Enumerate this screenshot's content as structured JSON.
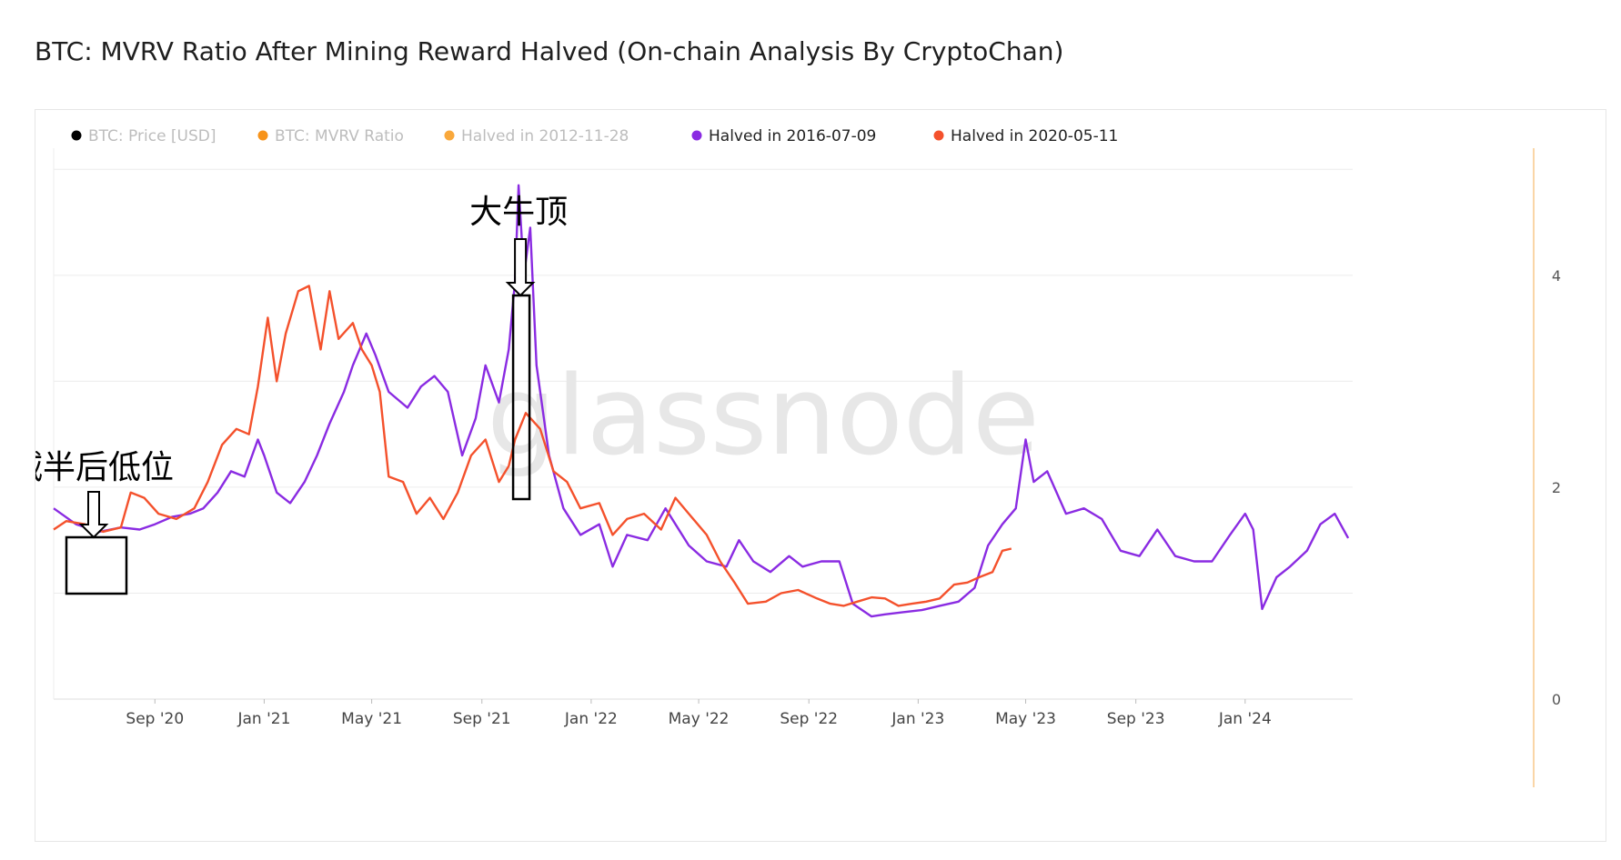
{
  "title": "BTC: MVRV Ratio After Mining Reward Halved (On-chain Analysis By CryptoChan)",
  "watermark": "glassnode",
  "colors": {
    "price": "#000000",
    "mvrv": "#f7931a",
    "halved_2012": "#f9a83b",
    "halved_2016": "#8a2be2",
    "halved_2020": "#f4512c",
    "grid": "#ececec",
    "right_axis": "#f9c98a"
  },
  "legend": [
    {
      "label": "BTC: Price [USD]",
      "color": "#000000",
      "dimmed": true
    },
    {
      "label": "BTC: MVRV Ratio",
      "color": "#f7931a",
      "dimmed": true
    },
    {
      "label": "Halved in 2012-11-28",
      "color": "#f9a83b",
      "dimmed": true
    },
    {
      "label": "Halved in 2016-07-09",
      "color": "#8a2be2",
      "dimmed": false
    },
    {
      "label": "Halved in 2020-05-11",
      "color": "#f4512c",
      "dimmed": false
    }
  ],
  "annotations": [
    {
      "text": "大牛顶",
      "target": "Halved in 2016-07-09 peak, Oct 2021"
    },
    {
      "text": "减半后低位",
      "target": "post-halving low, Jun–Aug 2020"
    }
  ],
  "chart_data": {
    "type": "line",
    "x_axis": {
      "type": "date",
      "range": [
        "2020-05-11",
        "2024-04-30"
      ],
      "ticks": [
        "Sep '20",
        "Jan '21",
        "May '21",
        "Sep '21",
        "Jan '22",
        "May '22",
        "Sep '22",
        "Jan '23",
        "May '23",
        "Sep '23",
        "Jan '24"
      ]
    },
    "y_axis": {
      "side": "right",
      "range": [
        0,
        5.2
      ],
      "ticks": [
        "0",
        "2",
        "4"
      ]
    },
    "grid": true,
    "legend_position": "top-left",
    "series": [
      {
        "name": "Halved in 2016-07-09",
        "points": [
          [
            "2020-05-11",
            1.8
          ],
          [
            "2020-06-05",
            1.65
          ],
          [
            "2020-07-01",
            1.58
          ],
          [
            "2020-07-25",
            1.62
          ],
          [
            "2020-08-15",
            1.6
          ],
          [
            "2020-09-01",
            1.65
          ],
          [
            "2020-09-20",
            1.72
          ],
          [
            "2020-10-10",
            1.75
          ],
          [
            "2020-10-25",
            1.8
          ],
          [
            "2020-11-10",
            1.95
          ],
          [
            "2020-11-25",
            2.15
          ],
          [
            "2020-12-10",
            2.1
          ],
          [
            "2020-12-25",
            2.45
          ],
          [
            "2021-01-01",
            2.3
          ],
          [
            "2021-01-15",
            1.95
          ],
          [
            "2021-01-30",
            1.85
          ],
          [
            "2021-02-15",
            2.05
          ],
          [
            "2021-03-01",
            2.3
          ],
          [
            "2021-03-15",
            2.6
          ],
          [
            "2021-03-31",
            2.9
          ],
          [
            "2021-04-10",
            3.15
          ],
          [
            "2021-04-25",
            3.45
          ],
          [
            "2021-05-05",
            3.25
          ],
          [
            "2021-05-20",
            2.9
          ],
          [
            "2021-06-10",
            2.75
          ],
          [
            "2021-06-25",
            2.95
          ],
          [
            "2021-07-10",
            3.05
          ],
          [
            "2021-07-25",
            2.9
          ],
          [
            "2021-08-10",
            2.3
          ],
          [
            "2021-08-25",
            2.65
          ],
          [
            "2021-09-05",
            3.15
          ],
          [
            "2021-09-20",
            2.8
          ],
          [
            "2021-10-01",
            3.3
          ],
          [
            "2021-10-08",
            3.95
          ],
          [
            "2021-10-12",
            4.85
          ],
          [
            "2021-10-18",
            4.0
          ],
          [
            "2021-10-25",
            4.45
          ],
          [
            "2021-11-01",
            3.15
          ],
          [
            "2021-11-15",
            2.3
          ],
          [
            "2021-12-01",
            1.8
          ],
          [
            "2021-12-20",
            1.55
          ],
          [
            "2022-01-10",
            1.65
          ],
          [
            "2022-01-25",
            1.25
          ],
          [
            "2022-02-10",
            1.55
          ],
          [
            "2022-03-05",
            1.5
          ],
          [
            "2022-03-25",
            1.8
          ],
          [
            "2022-04-20",
            1.45
          ],
          [
            "2022-05-10",
            1.3
          ],
          [
            "2022-06-01",
            1.25
          ],
          [
            "2022-06-15",
            1.5
          ],
          [
            "2022-07-01",
            1.3
          ],
          [
            "2022-07-20",
            1.2
          ],
          [
            "2022-08-10",
            1.35
          ],
          [
            "2022-08-25",
            1.25
          ],
          [
            "2022-09-15",
            1.3
          ],
          [
            "2022-10-05",
            1.3
          ],
          [
            "2022-10-20",
            0.9
          ],
          [
            "2022-11-10",
            0.78
          ],
          [
            "2022-11-25",
            0.8
          ],
          [
            "2022-12-15",
            0.82
          ],
          [
            "2023-01-05",
            0.84
          ],
          [
            "2023-01-25",
            0.88
          ],
          [
            "2023-02-15",
            0.92
          ],
          [
            "2023-03-05",
            1.05
          ],
          [
            "2023-03-20",
            1.45
          ],
          [
            "2023-04-05",
            1.65
          ],
          [
            "2023-04-20",
            1.8
          ],
          [
            "2023-05-01",
            2.45
          ],
          [
            "2023-05-10",
            2.05
          ],
          [
            "2023-05-25",
            2.15
          ],
          [
            "2023-06-15",
            1.75
          ],
          [
            "2023-07-05",
            1.8
          ],
          [
            "2023-07-25",
            1.7
          ],
          [
            "2023-08-15",
            1.4
          ],
          [
            "2023-09-05",
            1.35
          ],
          [
            "2023-09-25",
            1.6
          ],
          [
            "2023-10-15",
            1.35
          ],
          [
            "2023-11-05",
            1.3
          ],
          [
            "2023-11-25",
            1.3
          ],
          [
            "2023-12-15",
            1.55
          ],
          [
            "2024-01-01",
            1.75
          ],
          [
            "2024-01-10",
            1.6
          ],
          [
            "2024-01-20",
            0.85
          ],
          [
            "2024-02-05",
            1.15
          ],
          [
            "2024-02-20",
            1.25
          ],
          [
            "2024-03-10",
            1.4
          ],
          [
            "2024-03-25",
            1.65
          ],
          [
            "2024-04-10",
            1.75
          ],
          [
            "2024-04-25",
            1.52
          ]
        ]
      },
      {
        "name": "Halved in 2020-05-11",
        "points": [
          [
            "2020-05-11",
            1.6
          ],
          [
            "2020-05-25",
            1.68
          ],
          [
            "2020-06-15",
            1.65
          ],
          [
            "2020-07-05",
            1.58
          ],
          [
            "2020-07-25",
            1.62
          ],
          [
            "2020-08-05",
            1.95
          ],
          [
            "2020-08-20",
            1.9
          ],
          [
            "2020-09-05",
            1.75
          ],
          [
            "2020-09-25",
            1.7
          ],
          [
            "2020-10-15",
            1.8
          ],
          [
            "2020-10-30",
            2.05
          ],
          [
            "2020-11-15",
            2.4
          ],
          [
            "2020-12-01",
            2.55
          ],
          [
            "2020-12-15",
            2.5
          ],
          [
            "2020-12-25",
            2.95
          ],
          [
            "2021-01-05",
            3.6
          ],
          [
            "2021-01-15",
            3.0
          ],
          [
            "2021-01-25",
            3.45
          ],
          [
            "2021-02-08",
            3.85
          ],
          [
            "2021-02-20",
            3.9
          ],
          [
            "2021-03-05",
            3.3
          ],
          [
            "2021-03-15",
            3.85
          ],
          [
            "2021-03-25",
            3.4
          ],
          [
            "2021-04-10",
            3.55
          ],
          [
            "2021-04-20",
            3.3
          ],
          [
            "2021-05-01",
            3.15
          ],
          [
            "2021-05-10",
            2.9
          ],
          [
            "2021-05-20",
            2.1
          ],
          [
            "2021-06-05",
            2.05
          ],
          [
            "2021-06-20",
            1.75
          ],
          [
            "2021-07-05",
            1.9
          ],
          [
            "2021-07-20",
            1.7
          ],
          [
            "2021-08-05",
            1.95
          ],
          [
            "2021-08-20",
            2.3
          ],
          [
            "2021-09-05",
            2.45
          ],
          [
            "2021-09-20",
            2.05
          ],
          [
            "2021-10-01",
            2.2
          ],
          [
            "2021-10-08",
            2.45
          ],
          [
            "2021-10-20",
            2.7
          ],
          [
            "2021-11-05",
            2.55
          ],
          [
            "2021-11-20",
            2.15
          ],
          [
            "2021-12-05",
            2.05
          ],
          [
            "2021-12-20",
            1.8
          ],
          [
            "2022-01-10",
            1.85
          ],
          [
            "2022-01-25",
            1.55
          ],
          [
            "2022-02-10",
            1.7
          ],
          [
            "2022-03-01",
            1.75
          ],
          [
            "2022-03-20",
            1.6
          ],
          [
            "2022-04-05",
            1.9
          ],
          [
            "2022-04-20",
            1.75
          ],
          [
            "2022-05-10",
            1.55
          ],
          [
            "2022-05-25",
            1.3
          ],
          [
            "2022-06-10",
            1.1
          ],
          [
            "2022-06-25",
            0.9
          ],
          [
            "2022-07-15",
            0.92
          ],
          [
            "2022-08-01",
            1.0
          ],
          [
            "2022-08-20",
            1.03
          ],
          [
            "2022-09-10",
            0.95
          ],
          [
            "2022-09-25",
            0.9
          ],
          [
            "2022-10-10",
            0.88
          ],
          [
            "2022-10-25",
            0.92
          ],
          [
            "2022-11-10",
            0.96
          ],
          [
            "2022-11-25",
            0.95
          ],
          [
            "2022-12-10",
            0.88
          ],
          [
            "2022-12-25",
            0.9
          ],
          [
            "2023-01-10",
            0.92
          ],
          [
            "2023-01-25",
            0.95
          ],
          [
            "2023-02-10",
            1.08
          ],
          [
            "2023-02-25",
            1.1
          ],
          [
            "2023-03-10",
            1.15
          ],
          [
            "2023-03-25",
            1.2
          ],
          [
            "2023-04-05",
            1.4
          ],
          [
            "2023-04-15",
            1.42
          ]
        ]
      }
    ]
  }
}
